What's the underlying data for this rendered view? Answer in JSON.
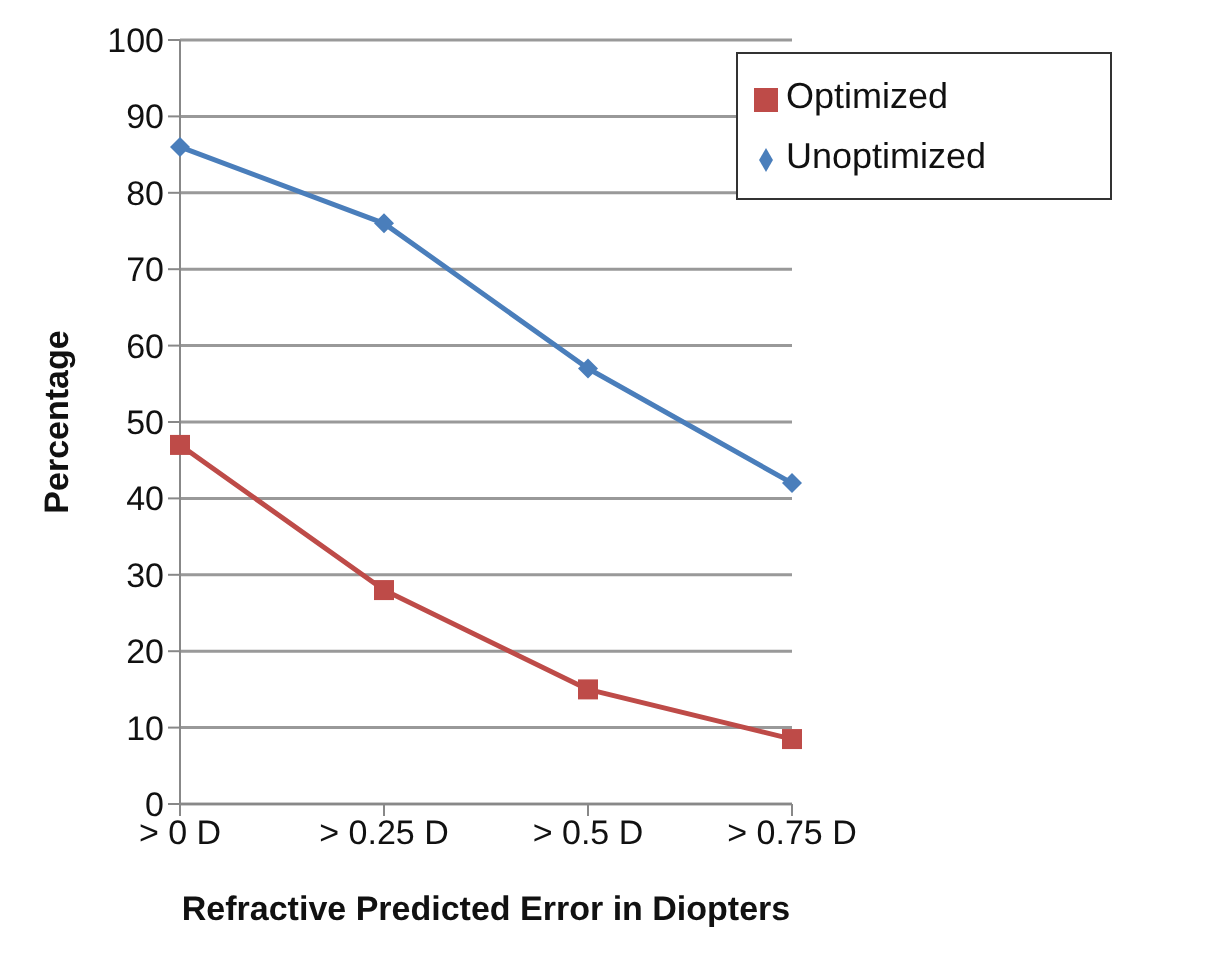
{
  "chart_data": {
    "type": "line",
    "xlabel": "Refractive Predicted Error in Diopters",
    "ylabel": "Percentage",
    "categories": [
      "> 0 D",
      "> 0.25 D",
      "> 0.5 D",
      "> 0.75 D"
    ],
    "series": [
      {
        "name": "Unoptimized",
        "color": "#4a7ebb",
        "values": [
          86,
          76,
          57,
          42
        ],
        "marker": "diamond"
      },
      {
        "name": "Optimized",
        "color": "#be4b48",
        "values": [
          47,
          28,
          15,
          8.5
        ],
        "marker": "square"
      }
    ],
    "ylim": [
      0,
      100
    ],
    "yticks": [
      0,
      10,
      20,
      30,
      40,
      50,
      60,
      70,
      80,
      90,
      100
    ],
    "grid": "y",
    "legend": "top right"
  }
}
